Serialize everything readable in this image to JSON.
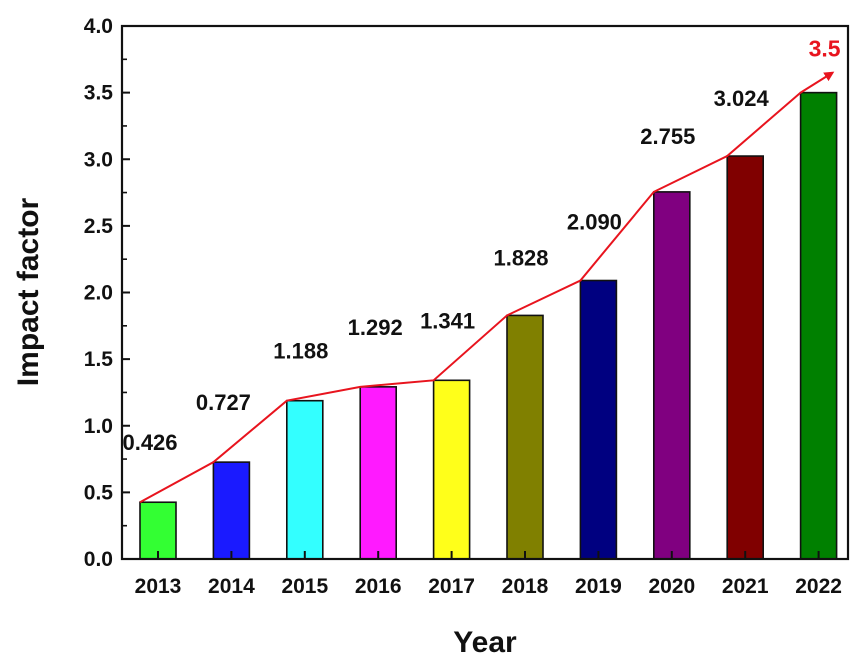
{
  "chart_data": {
    "type": "bar",
    "xlabel": "Year",
    "ylabel": "Impact factor",
    "ylim": [
      0.0,
      4.0
    ],
    "yticks": [
      "0.0",
      "0.5",
      "1.0",
      "1.5",
      "2.0",
      "2.5",
      "3.0",
      "3.5",
      "4.0"
    ],
    "categories": [
      "2013",
      "2014",
      "2015",
      "2016",
      "2017",
      "2018",
      "2019",
      "2020",
      "2021",
      "2022"
    ],
    "values": [
      0.426,
      0.727,
      1.188,
      1.292,
      1.341,
      1.828,
      2.09,
      2.755,
      3.024,
      3.5
    ],
    "value_labels": [
      "0.426",
      "0.727",
      "1.188",
      "1.292",
      "1.341",
      "1.828",
      "2.090",
      "2.755",
      "3.024",
      "3.5"
    ],
    "bar_colors": [
      "#33ff33",
      "#1a1aff",
      "#33ffff",
      "#ff1aff",
      "#ffff1a",
      "#808000",
      "#000080",
      "#800080",
      "#800000",
      "#008000"
    ],
    "trend_line_color": "#e8141e",
    "last_label_color": "#e8141e",
    "legend": "none",
    "grid": false
  }
}
